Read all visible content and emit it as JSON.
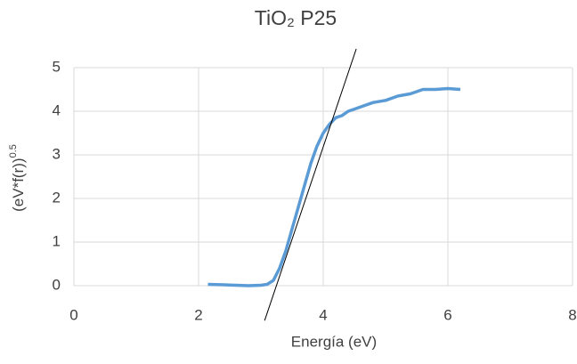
{
  "chart_data": {
    "type": "line",
    "title": "TiO₂ P25",
    "x_label": "Energía (eV)",
    "y_label": {
      "text": "(eV*f(r))",
      "sup": "0.5"
    },
    "series": [
      {
        "color": "#5b9bd5",
        "x": [
          2.15,
          2.4,
          2.6,
          2.8,
          3.0,
          3.1,
          3.2,
          3.3,
          3.4,
          3.5,
          3.6,
          3.7,
          3.8,
          3.9,
          4.0,
          4.1,
          4.2,
          4.3,
          4.4,
          4.5,
          4.6,
          4.8,
          5.0,
          5.2,
          5.4,
          5.6,
          5.8,
          6.0,
          6.2
        ],
        "values": [
          0.03,
          0.02,
          0.01,
          0.0,
          0.01,
          0.03,
          0.12,
          0.4,
          0.8,
          1.3,
          1.8,
          2.3,
          2.8,
          3.2,
          3.5,
          3.7,
          3.85,
          3.9,
          4.0,
          4.05,
          4.1,
          4.2,
          4.25,
          4.35,
          4.4,
          4.5,
          4.5,
          4.52,
          4.5
        ]
      }
    ],
    "fit_line": {
      "color": "#000000",
      "x": [
        3.06,
        4.53
      ],
      "values": [
        -0.8,
        5.43
      ]
    },
    "xlim": [
      0,
      8
    ],
    "xticks": [
      0,
      2,
      4,
      6,
      8
    ],
    "ylim": [
      0,
      5
    ],
    "yticks": [
      0,
      1,
      2,
      3,
      4,
      5
    ],
    "grid": true
  }
}
